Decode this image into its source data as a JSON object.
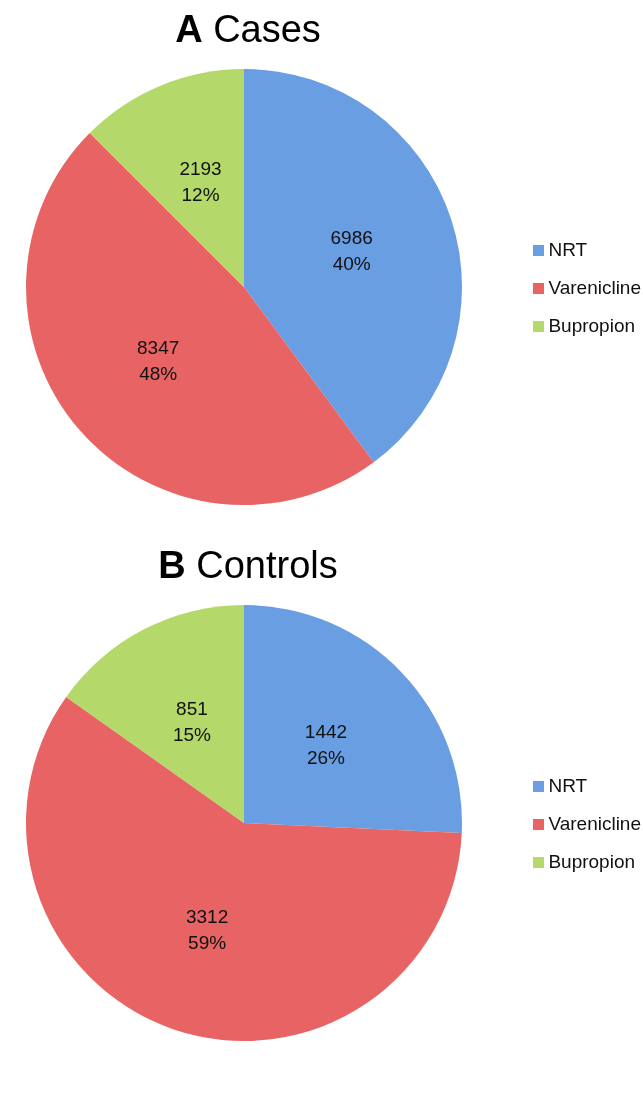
{
  "chart_data": [
    {
      "type": "pie",
      "title": "A Cases",
      "categories": [
        "NRT",
        "Varenicline",
        "Bupropion"
      ],
      "values": [
        6986,
        8347,
        2193
      ],
      "colors": [
        "#6a9ee3",
        "#e86464",
        "#b4d96a"
      ],
      "value_labels": [
        "6986\n40%",
        "8347\n48%",
        "2193\n12%"
      ],
      "legend": "right"
    },
    {
      "type": "pie",
      "title": "B Controls",
      "categories": [
        "NRT",
        "Varenicline",
        "Bupropion"
      ],
      "values": [
        1442,
        3312,
        851
      ],
      "colors": [
        "#6a9ee3",
        "#e86464",
        "#b4d96a"
      ],
      "value_labels": [
        "1442\n26%",
        "3312\n59%",
        "851\n15%"
      ],
      "legend": "right"
    }
  ]
}
